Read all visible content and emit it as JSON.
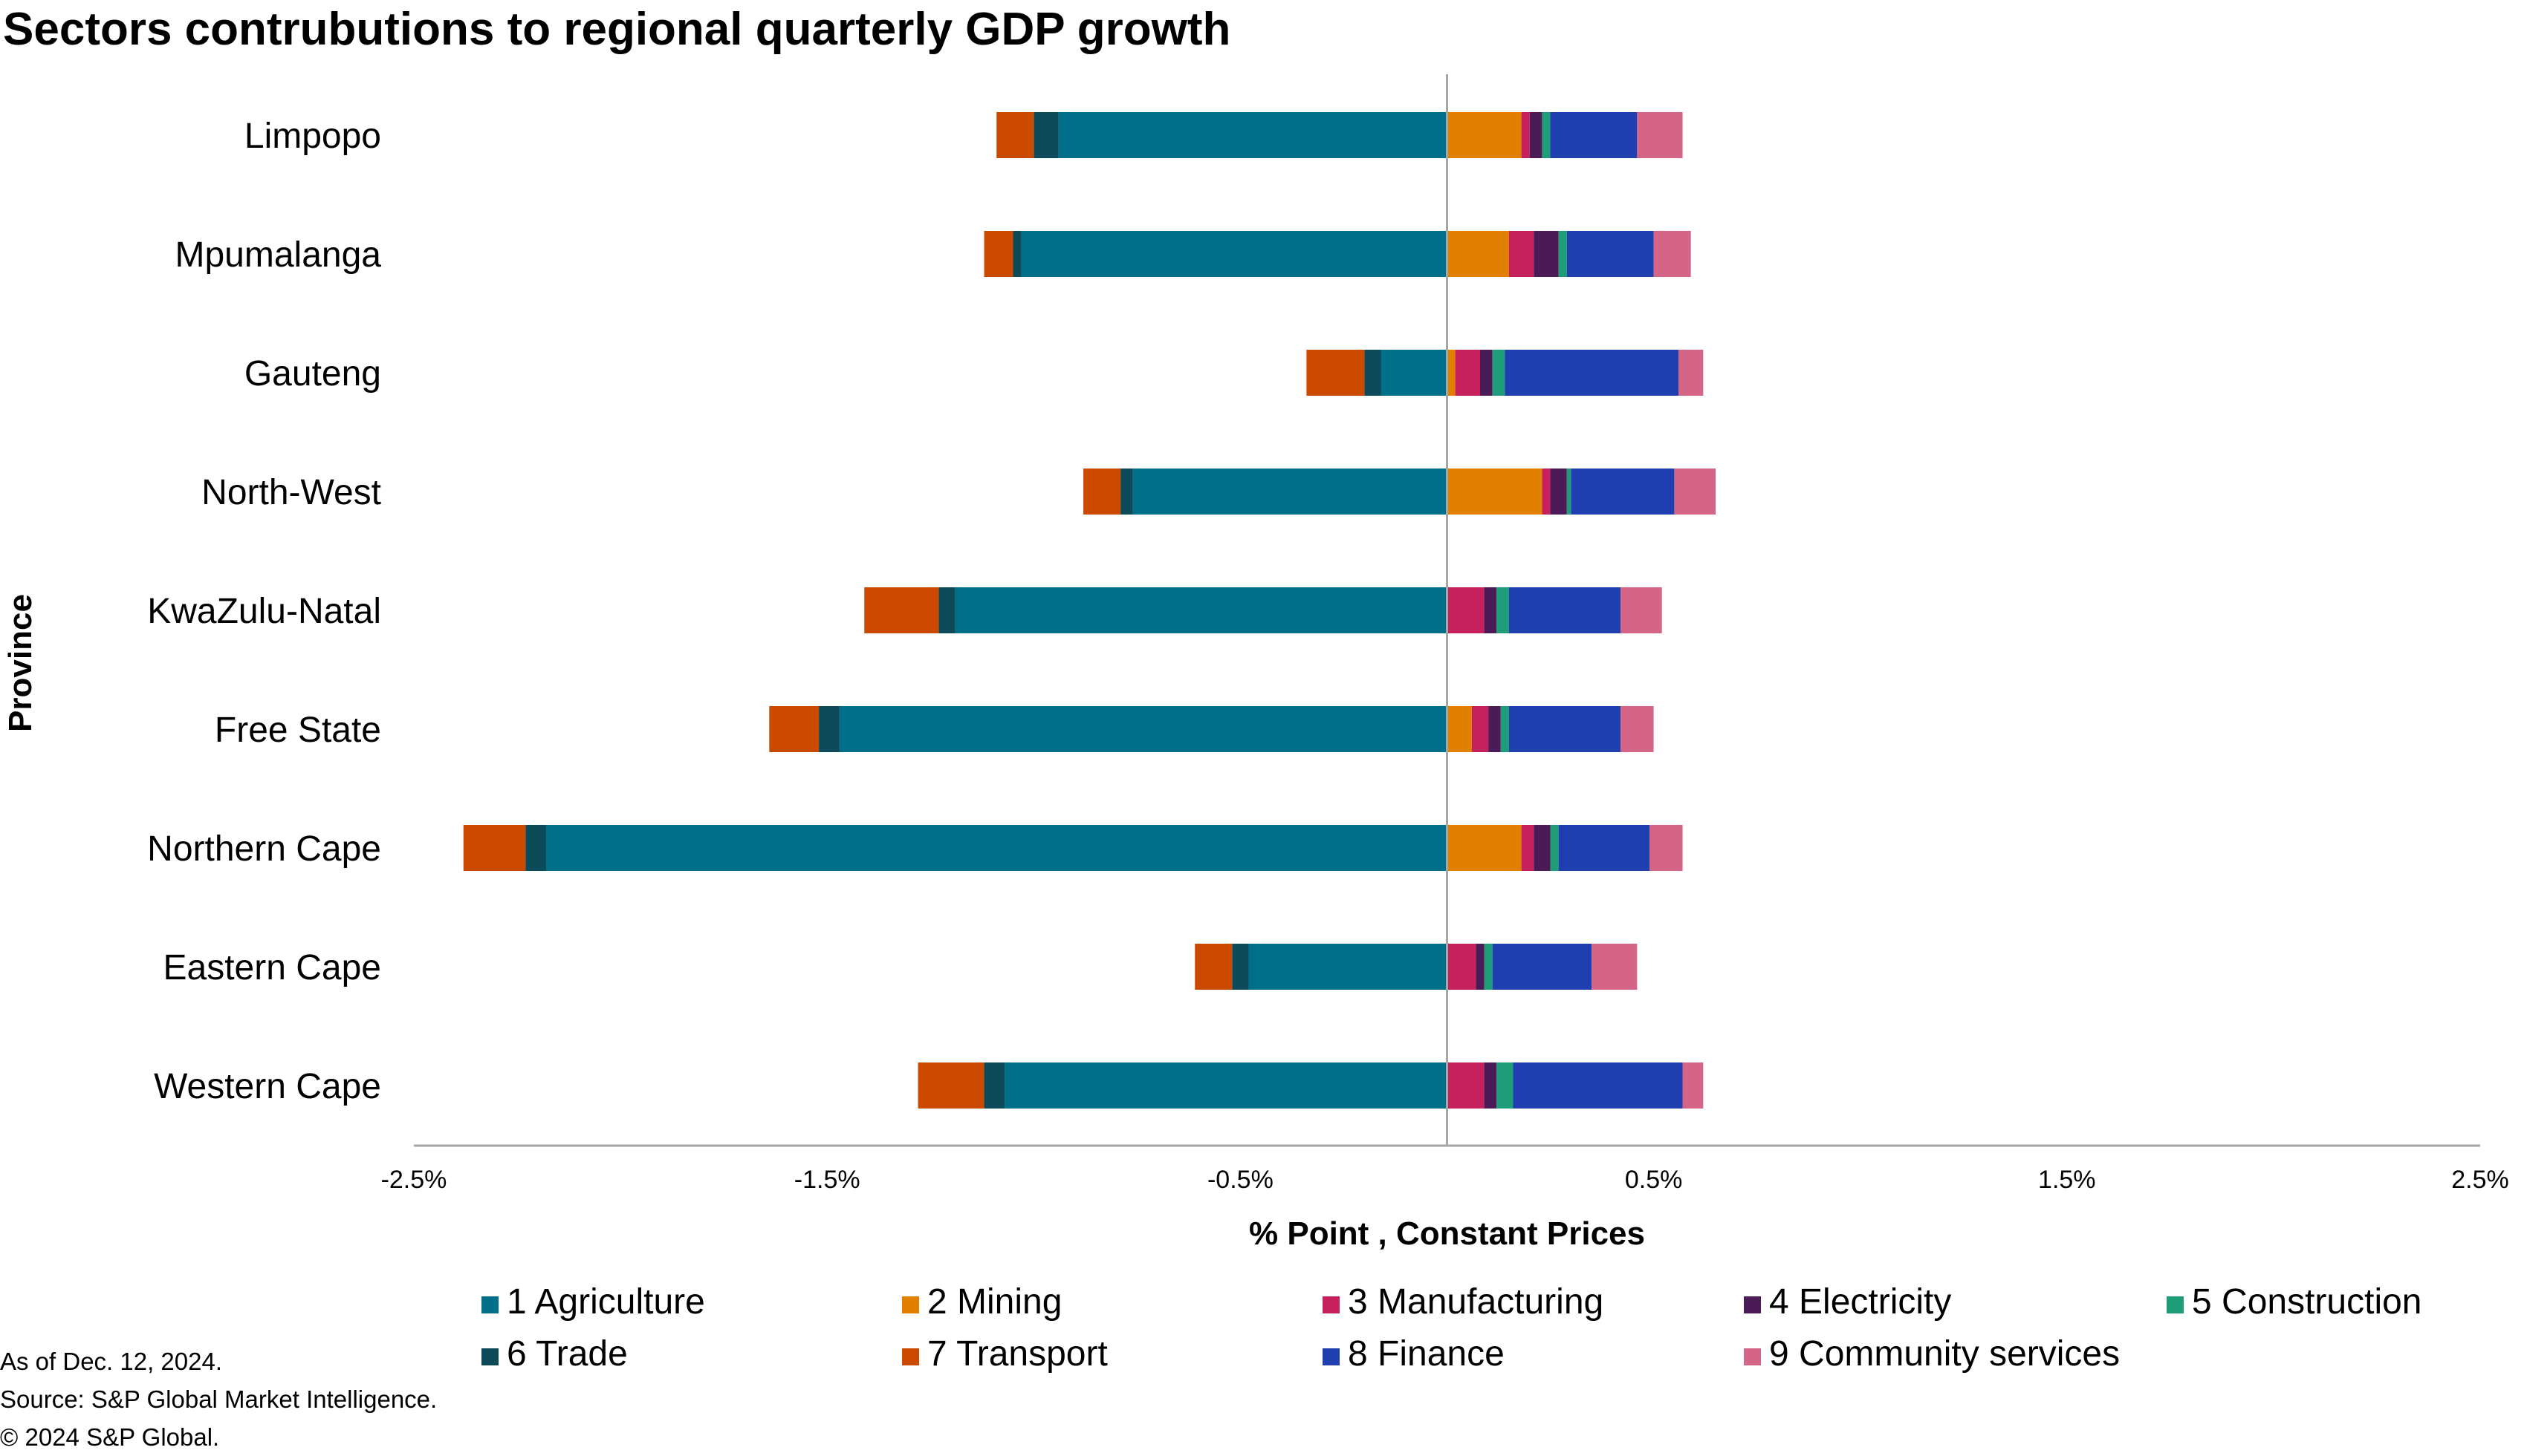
{
  "footer": {
    "as_of": "As of Dec. 12, 2024.",
    "source": "Source: S&P Global Market Intelligence.",
    "copyright": "© 2024 S&P Global."
  },
  "chart_data": {
    "type": "bar",
    "orientation": "horizontal",
    "stacked": true,
    "title": "Sectors contrubutions to regional quarterly GDP growth",
    "xlabel": "% Point , Constant Prices",
    "ylabel": "Province",
    "xlim": [
      -2.5,
      2.5
    ],
    "xticks": [
      -2.5,
      -1.5,
      -0.5,
      0.5,
      1.5,
      2.5
    ],
    "xtick_labels": [
      "-2.5%",
      "-1.5%",
      "-0.5%",
      "0.5%",
      "1.5%",
      "2.5%"
    ],
    "grid": false,
    "legend_position": "bottom",
    "categories": [
      "Limpopo",
      "Mpumalanga",
      "Gauteng",
      "North-West",
      "KwaZulu-Natal",
      "Free State",
      "Northern Cape",
      "Eastern Cape",
      "Western Cape"
    ],
    "series": [
      {
        "name": "1 Agriculture",
        "color": "#006F8A",
        "values": [
          -0.94,
          -1.03,
          -0.16,
          -0.76,
          -1.19,
          -1.47,
          -2.18,
          -0.48,
          -1.07
        ]
      },
      {
        "name": "2 Mining",
        "color": "#E07F00",
        "values": [
          0.18,
          0.15,
          0.02,
          0.23,
          0.0,
          0.06,
          0.18,
          0.0,
          0.0
        ]
      },
      {
        "name": "3 Manufacturing",
        "color": "#C7215D",
        "values": [
          0.02,
          0.06,
          0.06,
          0.02,
          0.09,
          0.04,
          0.03,
          0.07,
          0.09
        ]
      },
      {
        "name": "4 Electricity",
        "color": "#4B1B57",
        "values": [
          0.03,
          0.06,
          0.03,
          0.04,
          0.03,
          0.03,
          0.04,
          0.02,
          0.03
        ]
      },
      {
        "name": "5 Construction",
        "color": "#1E9D78",
        "values": [
          0.02,
          0.02,
          0.03,
          0.01,
          0.03,
          0.02,
          0.02,
          0.02,
          0.04
        ]
      },
      {
        "name": "6 Trade",
        "color": "#0C4A5A",
        "values": [
          -0.06,
          -0.02,
          -0.04,
          -0.03,
          -0.04,
          -0.05,
          -0.05,
          -0.04,
          -0.05
        ]
      },
      {
        "name": "7 Transport",
        "color": "#CC4A00",
        "values": [
          -0.09,
          -0.07,
          -0.14,
          -0.09,
          -0.18,
          -0.12,
          -0.15,
          -0.09,
          -0.16
        ]
      },
      {
        "name": "8 Finance",
        "color": "#1F3FB0",
        "values": [
          0.21,
          0.21,
          0.42,
          0.25,
          0.27,
          0.27,
          0.22,
          0.24,
          0.41
        ]
      },
      {
        "name": "9 Community services",
        "color": "#D46587",
        "values": [
          0.11,
          0.09,
          0.06,
          0.1,
          0.1,
          0.08,
          0.08,
          0.11,
          0.05
        ]
      }
    ]
  }
}
